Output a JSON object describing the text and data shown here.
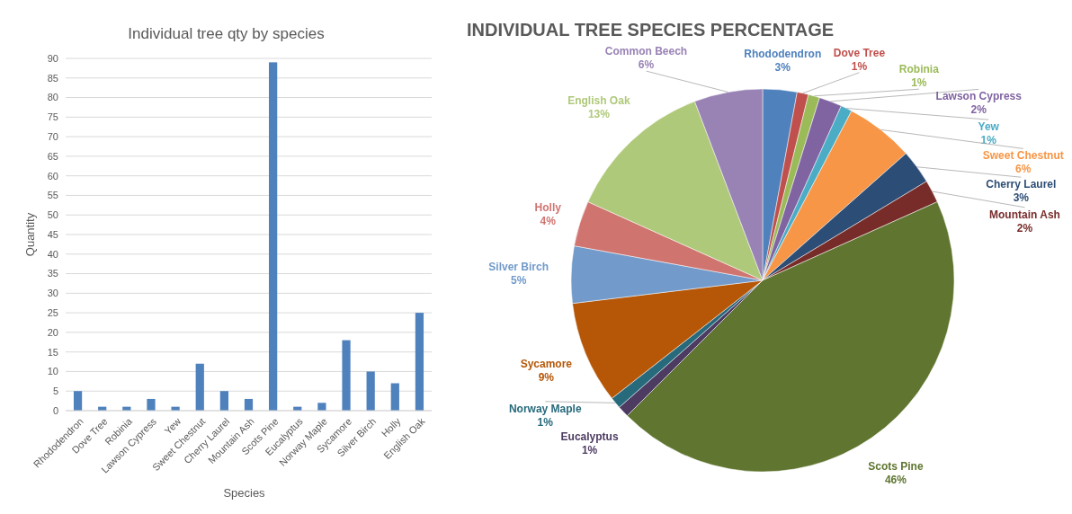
{
  "chart_data": [
    {
      "type": "bar",
      "title": "Individual tree qty by species",
      "xlabel": "Species",
      "ylabel": "Quantity",
      "categories": [
        "Rhododendron",
        "Dove Tree",
        "Robinia",
        "Lawson Cypress",
        "Yew",
        "Sweet Chestnut",
        "Cherry Laurel",
        "Mountain Ash",
        "Scots Pine",
        "Eucalyptus",
        "Norway Maple",
        "Sycamore",
        "Silver Birch",
        "Holly",
        "English Oak"
      ],
      "values": [
        5,
        1,
        1,
        3,
        1,
        12,
        5,
        3,
        89,
        1,
        2,
        18,
        10,
        7,
        25
      ],
      "color": "#4f81bd",
      "ylim": [
        0,
        90
      ],
      "yticks": [
        0,
        5,
        10,
        15,
        20,
        25,
        30,
        35,
        40,
        45,
        50,
        55,
        60,
        65,
        70,
        75,
        80,
        85,
        90
      ],
      "grid": "y"
    },
    {
      "type": "pie",
      "title": "INDIVIDUAL TREE SPECIES PERCENTAGE",
      "categories": [
        "Rhododendron",
        "Dove Tree",
        "Robinia",
        "Lawson Cypress",
        "Yew",
        "Sweet Chestnut",
        "Cherry Laurel",
        "Mountain Ash",
        "Scots Pine",
        "Eucalyptus",
        "Norway Maple",
        "Sycamore",
        "Silver Birch",
        "Holly",
        "English Oak",
        "Common Beech"
      ],
      "values": [
        3,
        1,
        1,
        2,
        1,
        6,
        3,
        2,
        46,
        1,
        1,
        9,
        5,
        4,
        13,
        6
      ],
      "colors": [
        "#4f81bd",
        "#c0504d",
        "#9bbb59",
        "#8064a2",
        "#4bacc6",
        "#f79646",
        "#2c4d75",
        "#772c2a",
        "#5f7530",
        "#4d3b62",
        "#276a7c",
        "#b65708",
        "#729aca",
        "#d07470",
        "#afc97a",
        "#9983b5"
      ],
      "value_labels": [
        "3%",
        "1%",
        "1%",
        "2%",
        "1%",
        "6%",
        "3%",
        "2%",
        "46%",
        "1%",
        "1%",
        "9%",
        "5%",
        "4%",
        "13%",
        "6%"
      ]
    }
  ]
}
